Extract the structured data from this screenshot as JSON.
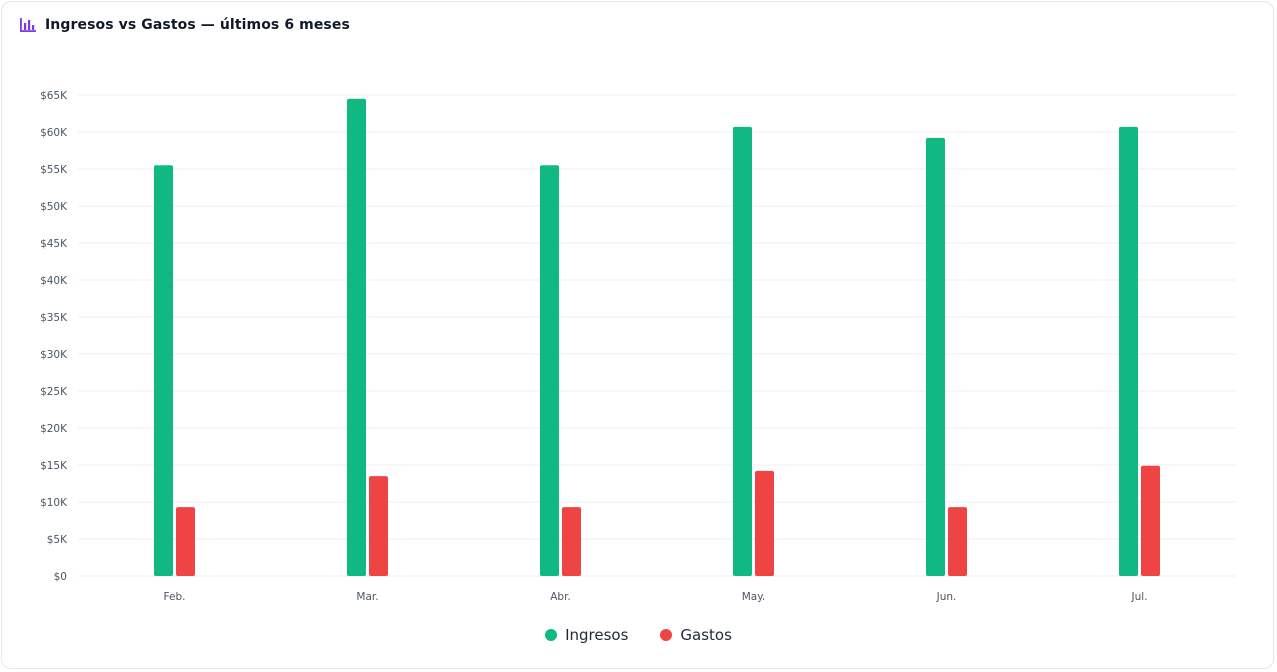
{
  "header": {
    "title": "Ingresos vs Gastos — últimos 6 meses",
    "icon": "bar-chart-icon",
    "icon_color": "#7c3aed"
  },
  "chart_data": {
    "type": "bar",
    "categories": [
      "Feb.",
      "Mar.",
      "Abr.",
      "May.",
      "Jun.",
      "Jul."
    ],
    "series": [
      {
        "name": "Ingresos",
        "color": "#10b981",
        "values": [
          55500,
          64500,
          55500,
          60700,
          59200,
          60700
        ]
      },
      {
        "name": "Gastos",
        "color": "#ef4444",
        "values": [
          9300,
          13500,
          9300,
          14200,
          9300,
          14900
        ]
      }
    ],
    "ylim": [
      0,
      65000
    ],
    "yticks": [
      "$0",
      "$5K",
      "$10K",
      "$15K",
      "$20K",
      "$25K",
      "$30K",
      "$35K",
      "$40K",
      "$45K",
      "$50K",
      "$55K",
      "$60K",
      "$65K"
    ],
    "grid": true,
    "legend_position": "bottom"
  }
}
